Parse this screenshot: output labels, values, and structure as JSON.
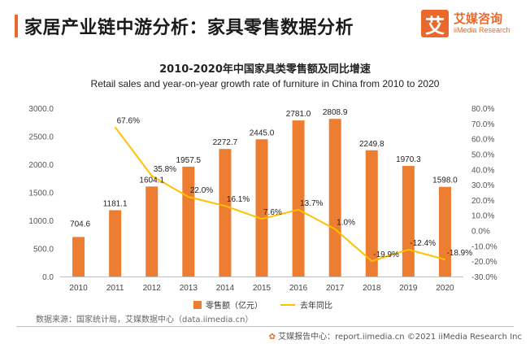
{
  "header": {
    "title": "家居产业链中游分析：家具零售数据分析",
    "logo_mark": "艾",
    "logo_cn": "艾媒咨询",
    "logo_en": "iiMedia Research"
  },
  "chart_data": {
    "type": "bar",
    "title": "2010-2020年中国家具类零售额及同比增速",
    "subtitle": "Retail sales and year-on-year growth rate of furniture in China from 2010 to 2020",
    "categories": [
      "2010",
      "2011",
      "2012",
      "2013",
      "2014",
      "2015",
      "2016",
      "2017",
      "2018",
      "2019",
      "2020"
    ],
    "series": [
      {
        "name": "零售额（亿元）",
        "type": "bar",
        "axis": "left",
        "color": "#ed7d31",
        "values": [
          704.6,
          1181.1,
          1604.1,
          1957.5,
          2272.7,
          2445.0,
          2781.0,
          2808.9,
          2249.8,
          1970.3,
          1598.0
        ],
        "labels": [
          "704.6",
          "1181.1",
          "1604.1",
          "1957.5",
          "2272.7",
          "2445.0",
          "2781.0",
          "2808.9",
          "2249.8",
          "1970.3",
          "1598.0"
        ]
      },
      {
        "name": "去年同比",
        "type": "line",
        "axis": "right",
        "color": "#ffc000",
        "values": [
          null,
          67.6,
          35.8,
          22.0,
          16.1,
          7.6,
          13.7,
          1.0,
          -19.9,
          -12.4,
          -18.9
        ],
        "labels": [
          "",
          "67.6%",
          "35.8%",
          "22.0%",
          "16.1%",
          "7.6%",
          "13.7%",
          "1.0%",
          "-19.9%",
          "-12.4%",
          "-18.9%"
        ]
      }
    ],
    "left_axis": {
      "min": 0,
      "max": 3000,
      "ticks": [
        0,
        500,
        1000,
        1500,
        2000,
        2500,
        3000
      ],
      "tick_labels": [
        "0.0",
        "500.0",
        "1000.0",
        "1500.0",
        "2000.0",
        "2500.0",
        "3000.0"
      ]
    },
    "right_axis": {
      "min": -30,
      "max": 80,
      "ticks": [
        -30,
        -20,
        -10,
        0,
        10,
        20,
        30,
        40,
        50,
        60,
        70,
        80
      ],
      "tick_labels": [
        "-30.0%",
        "-20.0%",
        "-10.0%",
        "0.0%",
        "10.0%",
        "20.0%",
        "30.0%",
        "40.0%",
        "50.0%",
        "60.0%",
        "70.0%",
        "80.0%"
      ]
    },
    "legend_position": "bottom-center",
    "grid": false
  },
  "footer": {
    "source": "数据来源：国家统计局，艾媒数据中心（data.iimedia.cn）",
    "icon": "✿",
    "credit": "艾媒报告中心：report.iimedia.cn  ©2021  iiMedia Research  Inc"
  }
}
